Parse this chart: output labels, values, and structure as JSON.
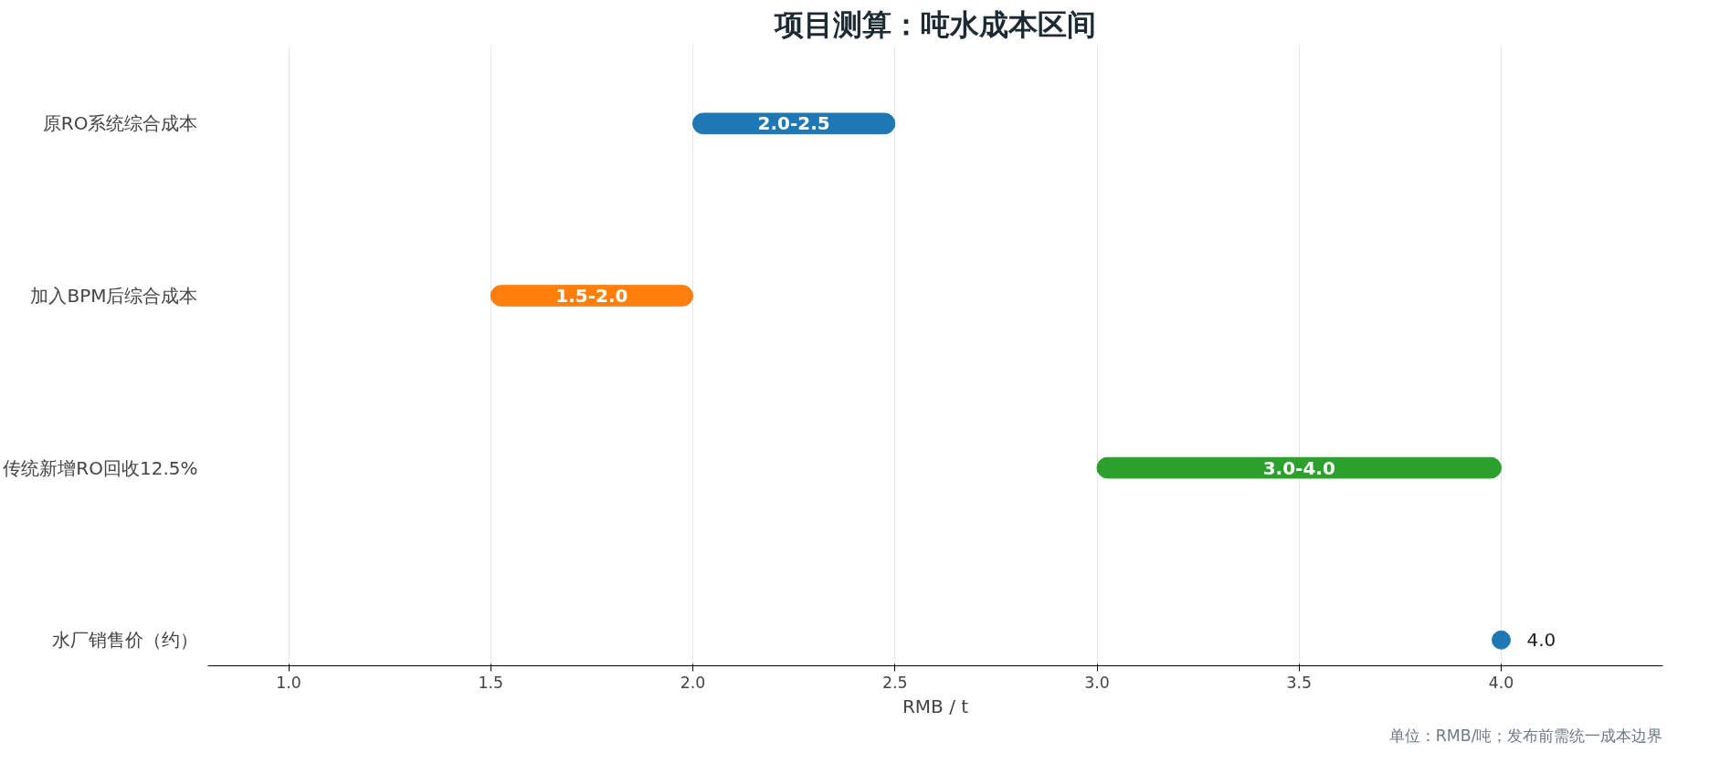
{
  "chart_data": {
    "type": "bar",
    "orientation": "horizontal",
    "title": "项目测算：吨水成本区间",
    "xlabel": "RMB / t",
    "categories": [
      "原RO系统综合成本",
      "加入BPM后综合成本",
      "传统新增RO回收12.5%",
      "水厂销售价（约）"
    ],
    "series": [
      {
        "type": "bar",
        "values": [
          0.5,
          0.5,
          1.0,
          null
        ],
        "base": [
          2.0,
          1.5,
          3.0,
          null
        ],
        "colors": [
          "#1f77b4",
          "#ff7f0e",
          "#2ca02c",
          null
        ],
        "value_labels": [
          "2.0-2.5",
          "1.5-2.0",
          "3.0-4.0",
          null
        ]
      },
      {
        "type": "scatter",
        "values": [
          null,
          null,
          null,
          4.0
        ],
        "color": "#1f77b4",
        "marker": "circle",
        "value_labels": [
          null,
          null,
          null,
          "4.0"
        ]
      }
    ],
    "xlim": [
      0.8,
      4.4
    ],
    "xticks": [
      {
        "value": 1,
        "label": "1.0"
      },
      {
        "value": 1.5,
        "label": "1.5"
      },
      {
        "value": 2,
        "label": "2.0"
      },
      {
        "value": 2.5,
        "label": "2.5"
      },
      {
        "value": 3,
        "label": "3.0"
      },
      {
        "value": 3.5,
        "label": "3.5"
      },
      {
        "value": 4,
        "label": "4.0"
      }
    ],
    "grid": "x",
    "annotations": [
      "单位：RMB/吨；发布前需统一成本边界"
    ]
  }
}
